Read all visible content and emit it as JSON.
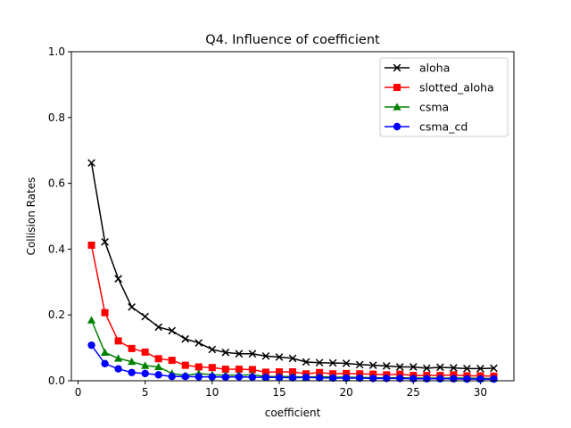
{
  "chart_data": {
    "type": "line",
    "title": "Q4. Influence of coefficient",
    "xlabel": "coefficient",
    "ylabel": "Collision Rates",
    "xlim": [
      -0.5,
      32.5
    ],
    "ylim": [
      0,
      1.0
    ],
    "xticks": [
      0,
      5,
      10,
      15,
      20,
      25,
      30
    ],
    "yticks": [
      0.0,
      0.2,
      0.4,
      0.6,
      0.8,
      1.0
    ],
    "ytick_labels": [
      "0.0",
      "0.2",
      "0.4",
      "0.6",
      "0.8",
      "1.0"
    ],
    "grid": false,
    "legend_position": "top-right",
    "x": [
      1,
      2,
      3,
      4,
      5,
      6,
      7,
      8,
      9,
      10,
      11,
      12,
      13,
      14,
      15,
      16,
      17,
      18,
      19,
      20,
      21,
      22,
      23,
      24,
      25,
      26,
      27,
      28,
      29,
      30,
      31
    ],
    "series": [
      {
        "name": "aloha",
        "color": "#000000",
        "marker": "x",
        "values": [
          0.662,
          0.422,
          0.31,
          0.224,
          0.195,
          0.163,
          0.152,
          0.127,
          0.115,
          0.095,
          0.086,
          0.082,
          0.082,
          0.075,
          0.072,
          0.068,
          0.057,
          0.055,
          0.054,
          0.053,
          0.049,
          0.047,
          0.045,
          0.042,
          0.042,
          0.038,
          0.041,
          0.039,
          0.037,
          0.037,
          0.038
        ]
      },
      {
        "name": "slotted_aloha",
        "color": "#ff0000",
        "marker": "square",
        "values": [
          0.412,
          0.207,
          0.121,
          0.098,
          0.087,
          0.067,
          0.062,
          0.047,
          0.042,
          0.04,
          0.035,
          0.035,
          0.034,
          0.026,
          0.027,
          0.027,
          0.021,
          0.025,
          0.021,
          0.022,
          0.021,
          0.02,
          0.018,
          0.02,
          0.016,
          0.016,
          0.016,
          0.018,
          0.015,
          0.015,
          0.014
        ]
      },
      {
        "name": "csma",
        "color": "#008000",
        "marker": "triangle",
        "values": [
          0.184,
          0.086,
          0.068,
          0.058,
          0.046,
          0.042,
          0.022,
          0.016,
          0.022,
          0.018,
          0.017,
          0.017,
          0.018,
          0.013,
          0.013,
          0.013,
          0.011,
          0.013,
          0.011,
          0.011,
          0.01,
          0.009,
          0.009,
          0.009,
          0.008,
          0.008,
          0.008,
          0.008,
          0.008,
          0.007,
          0.007
        ]
      },
      {
        "name": "csma_cd",
        "color": "#0000ff",
        "marker": "circle",
        "values": [
          0.108,
          0.052,
          0.036,
          0.025,
          0.022,
          0.018,
          0.013,
          0.013,
          0.012,
          0.012,
          0.011,
          0.012,
          0.011,
          0.01,
          0.01,
          0.009,
          0.01,
          0.009,
          0.008,
          0.008,
          0.008,
          0.007,
          0.007,
          0.007,
          0.006,
          0.006,
          0.006,
          0.006,
          0.005,
          0.005,
          0.005
        ]
      }
    ]
  }
}
